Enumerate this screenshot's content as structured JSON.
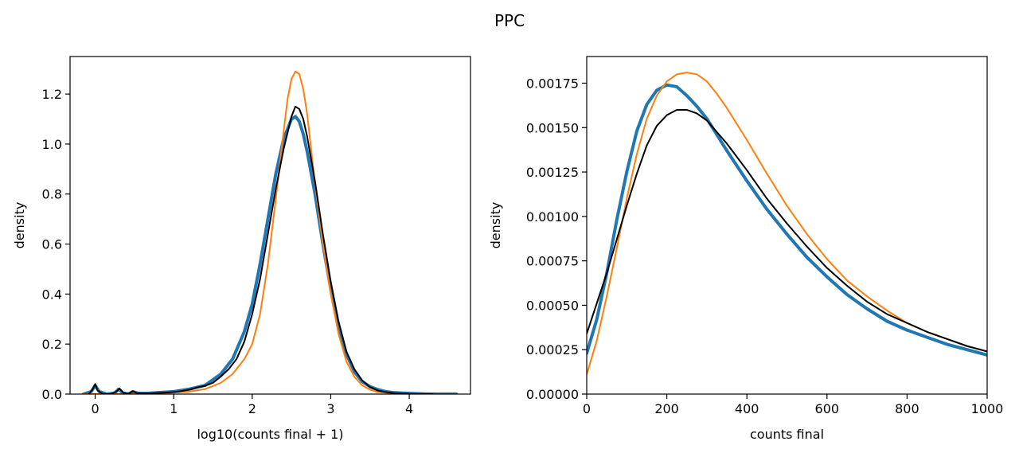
{
  "figure": {
    "title": "PPC"
  },
  "chart_data": [
    {
      "type": "line",
      "xlabel": "log10(counts final + 1)",
      "ylabel": "density",
      "xlim": [
        -0.32,
        4.78
      ],
      "ylim": [
        0,
        1.35
      ],
      "xticks": [
        0,
        1,
        2,
        3,
        4
      ],
      "yticks": [
        0.0,
        0.2,
        0.4,
        0.6,
        0.8,
        1.0,
        1.2
      ],
      "ytick_format": 1,
      "grid": false,
      "series": [
        {
          "color": "#1f77b4",
          "width": 4,
          "x": [
            -0.15,
            -0.05,
            0.0,
            0.05,
            0.15,
            0.25,
            0.3,
            0.35,
            0.42,
            0.48,
            0.55,
            0.65,
            0.8,
            1.0,
            1.2,
            1.4,
            1.6,
            1.75,
            1.9,
            2.0,
            2.1,
            2.2,
            2.3,
            2.4,
            2.5,
            2.55,
            2.6,
            2.65,
            2.7,
            2.8,
            2.9,
            3.0,
            3.1,
            3.2,
            3.3,
            3.4,
            3.5,
            3.6,
            3.7,
            3.8,
            4.0,
            4.2,
            4.4,
            4.6
          ],
          "y": [
            0.0,
            0.01,
            0.035,
            0.01,
            0.0,
            0.005,
            0.02,
            0.005,
            0.0,
            0.01,
            0.003,
            0.003,
            0.006,
            0.01,
            0.02,
            0.035,
            0.08,
            0.14,
            0.25,
            0.36,
            0.52,
            0.7,
            0.88,
            1.02,
            1.1,
            1.11,
            1.09,
            1.04,
            0.97,
            0.8,
            0.6,
            0.42,
            0.27,
            0.16,
            0.09,
            0.05,
            0.03,
            0.018,
            0.01,
            0.006,
            0.003,
            0.001,
            0.0,
            0.0
          ]
        },
        {
          "color": "#ff7f0e",
          "width": 2,
          "x": [
            -0.15,
            0.0,
            0.2,
            0.4,
            0.6,
            0.8,
            1.0,
            1.2,
            1.4,
            1.6,
            1.75,
            1.9,
            2.0,
            2.1,
            2.2,
            2.3,
            2.4,
            2.45,
            2.5,
            2.55,
            2.6,
            2.65,
            2.7,
            2.75,
            2.8,
            2.9,
            3.0,
            3.1,
            3.2,
            3.3,
            3.4,
            3.5,
            3.6,
            3.8,
            4.0,
            4.2
          ],
          "y": [
            0.0,
            0.0,
            0.0,
            0.0,
            0.002,
            0.004,
            0.006,
            0.01,
            0.02,
            0.045,
            0.08,
            0.14,
            0.2,
            0.32,
            0.52,
            0.78,
            1.05,
            1.18,
            1.26,
            1.29,
            1.28,
            1.22,
            1.12,
            0.98,
            0.84,
            0.6,
            0.4,
            0.24,
            0.13,
            0.07,
            0.035,
            0.018,
            0.008,
            0.003,
            0.001,
            0.0
          ]
        },
        {
          "color": "#000000",
          "width": 2,
          "x": [
            -0.08,
            -0.03,
            0.0,
            0.03,
            0.1,
            0.2,
            0.27,
            0.31,
            0.36,
            0.43,
            0.48,
            0.53,
            0.6,
            0.7,
            0.85,
            1.0,
            1.1,
            1.2,
            1.25,
            1.3,
            1.4,
            1.5,
            1.6,
            1.7,
            1.8,
            1.9,
            2.0,
            2.1,
            2.2,
            2.3,
            2.4,
            2.5,
            2.55,
            2.6,
            2.65,
            2.7,
            2.8,
            2.9,
            3.0,
            3.1,
            3.2,
            3.3,
            3.4,
            3.5,
            3.6,
            3.7,
            3.8,
            4.0,
            4.2,
            4.3
          ],
          "y": [
            0.0,
            0.02,
            0.04,
            0.015,
            0.0,
            0.0,
            0.01,
            0.022,
            0.005,
            0.002,
            0.012,
            0.004,
            0.003,
            0.003,
            0.005,
            0.008,
            0.012,
            0.018,
            0.022,
            0.027,
            0.033,
            0.045,
            0.07,
            0.1,
            0.14,
            0.21,
            0.32,
            0.46,
            0.64,
            0.82,
            0.98,
            1.11,
            1.15,
            1.14,
            1.1,
            1.03,
            0.85,
            0.64,
            0.45,
            0.29,
            0.17,
            0.1,
            0.055,
            0.028,
            0.014,
            0.008,
            0.004,
            0.001,
            0.0,
            0.0
          ]
        }
      ]
    },
    {
      "type": "line",
      "xlabel": "counts final",
      "ylabel": "density",
      "xlim": [
        0,
        1000
      ],
      "ylim": [
        0,
        0.0019
      ],
      "xticks": [
        0,
        200,
        400,
        600,
        800,
        1000
      ],
      "yticks": [
        0.0,
        0.00025,
        0.0005,
        0.00075,
        0.001,
        0.00125,
        0.0015,
        0.00175
      ],
      "ytick_format": 5,
      "grid": false,
      "series": [
        {
          "color": "#1f77b4",
          "width": 4,
          "x": [
            0,
            25,
            50,
            75,
            100,
            125,
            150,
            175,
            200,
            225,
            250,
            275,
            300,
            350,
            400,
            450,
            500,
            550,
            600,
            650,
            700,
            750,
            800,
            850,
            900,
            950,
            1000
          ],
          "y": [
            0.00023,
            0.00042,
            0.00068,
            0.00098,
            0.00125,
            0.00148,
            0.00163,
            0.00171,
            0.00174,
            0.00173,
            0.00168,
            0.00162,
            0.00155,
            0.00137,
            0.0012,
            0.00104,
            0.0009,
            0.00077,
            0.00066,
            0.00056,
            0.00048,
            0.00041,
            0.00036,
            0.00032,
            0.00028,
            0.00025,
            0.00022
          ]
        },
        {
          "color": "#ff7f0e",
          "width": 2,
          "x": [
            0,
            25,
            50,
            75,
            100,
            125,
            150,
            175,
            200,
            225,
            250,
            275,
            300,
            325,
            350,
            400,
            450,
            500,
            550,
            600,
            650,
            700,
            750,
            800,
            850,
            900,
            950,
            1000
          ],
          "y": [
            0.00011,
            0.0003,
            0.00055,
            0.00082,
            0.0011,
            0.00135,
            0.00155,
            0.00168,
            0.00176,
            0.0018,
            0.00181,
            0.0018,
            0.00176,
            0.00169,
            0.00161,
            0.00143,
            0.00124,
            0.00106,
            0.0009,
            0.00076,
            0.00064,
            0.00055,
            0.00047,
            0.0004,
            0.00035,
            0.00031,
            0.00027,
            0.00024
          ]
        },
        {
          "color": "#000000",
          "width": 2,
          "x": [
            0,
            25,
            50,
            75,
            100,
            125,
            150,
            175,
            200,
            225,
            250,
            275,
            300,
            350,
            400,
            450,
            500,
            550,
            600,
            650,
            700,
            750,
            800,
            850,
            900,
            950,
            1000
          ],
          "y": [
            0.00034,
            0.00051,
            0.00068,
            0.00087,
            0.00106,
            0.00124,
            0.0014,
            0.00151,
            0.00157,
            0.0016,
            0.0016,
            0.00158,
            0.00154,
            0.00141,
            0.00126,
            0.0011,
            0.00096,
            0.00083,
            0.00071,
            0.00061,
            0.00052,
            0.00045,
            0.0004,
            0.00035,
            0.00031,
            0.00027,
            0.00024
          ]
        }
      ]
    }
  ]
}
